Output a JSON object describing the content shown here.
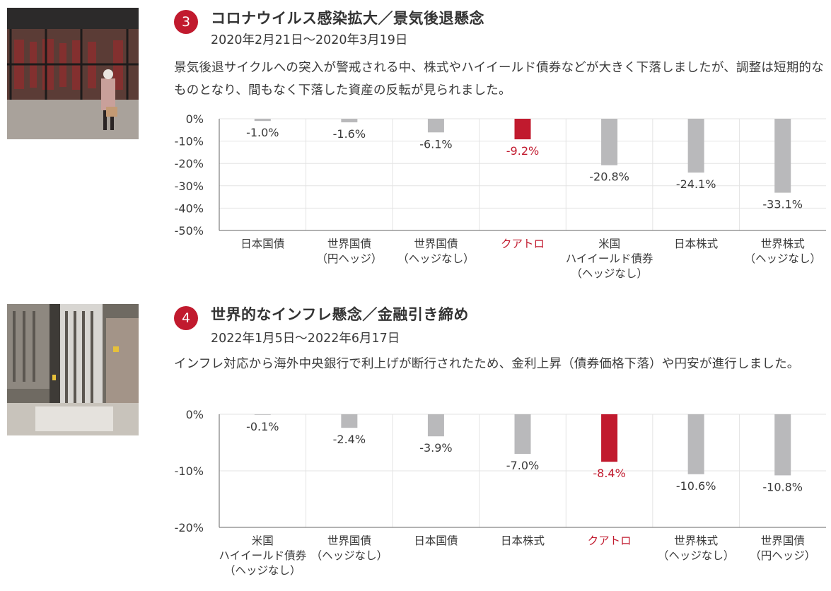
{
  "colors": {
    "highlight": "#c11a2e",
    "bar": "#b9b9bb",
    "text": "#3a3a3a",
    "grid": "#e3e3e3"
  },
  "sections": [
    {
      "number": "3",
      "heading": "コロナウイルス感染拡大／景気後退懸念",
      "period": "2020年2月21日～2020年3月19日",
      "description": "景気後退サイクルへの突入が警戒される中、株式やハイイールド債券などが大きく下落しましたが、調整は短期的なものとなり、間もなく下落した資産の反転が見られました。",
      "photo_icon": "city-street-pedestrian-photo"
    },
    {
      "number": "4",
      "heading": "世界的なインフレ懸念／金融引き締め",
      "period": "2022年1月5日～2022年6月17日",
      "description": "インフレ対応から海外中央銀行で利上げが断行されたため、金利上昇（債券価格下落）や円安が進行しました。",
      "photo_icon": "aerial-city-buildings-photo"
    }
  ],
  "chart_data": [
    {
      "type": "bar",
      "categories": [
        [
          "日本国債"
        ],
        [
          "世界国債",
          "（円ヘッジ）"
        ],
        [
          "世界国債",
          "（ヘッジなし）"
        ],
        [
          "クアトロ"
        ],
        [
          "米国",
          "ハイイールド債券",
          "（ヘッジなし）"
        ],
        [
          "日本株式"
        ],
        [
          "世界株式",
          "（ヘッジなし）"
        ]
      ],
      "values": [
        -1.0,
        -1.6,
        -6.1,
        -9.2,
        -20.8,
        -24.1,
        -33.1
      ],
      "value_labels": [
        "-1.0%",
        "-1.6%",
        "-6.1%",
        "-9.2%",
        "-20.8%",
        "-24.1%",
        "-33.1%"
      ],
      "highlight_index": 3,
      "ylim": [
        -50,
        0
      ],
      "yticks": [
        0,
        -10,
        -20,
        -30,
        -40,
        -50
      ],
      "ytick_labels": [
        "0%",
        "-10%",
        "-20%",
        "-30%",
        "-40%",
        "-50%"
      ],
      "grid": true
    },
    {
      "type": "bar",
      "categories": [
        [
          "米国",
          "ハイイールド債券",
          "（ヘッジなし）"
        ],
        [
          "世界国債",
          "（ヘッジなし）"
        ],
        [
          "日本国債"
        ],
        [
          "日本株式"
        ],
        [
          "クアトロ"
        ],
        [
          "世界株式",
          "（ヘッジなし）"
        ],
        [
          "世界国債",
          "（円ヘッジ）"
        ]
      ],
      "values": [
        -0.1,
        -2.4,
        -3.9,
        -7.0,
        -8.4,
        -10.6,
        -10.8
      ],
      "value_labels": [
        "-0.1%",
        "-2.4%",
        "-3.9%",
        "-7.0%",
        "-8.4%",
        "-10.6%",
        "-10.8%"
      ],
      "highlight_index": 4,
      "ylim": [
        -20,
        0
      ],
      "yticks": [
        0,
        -10,
        -20
      ],
      "ytick_labels": [
        "0%",
        "-10%",
        "-20%"
      ],
      "grid": true
    }
  ]
}
